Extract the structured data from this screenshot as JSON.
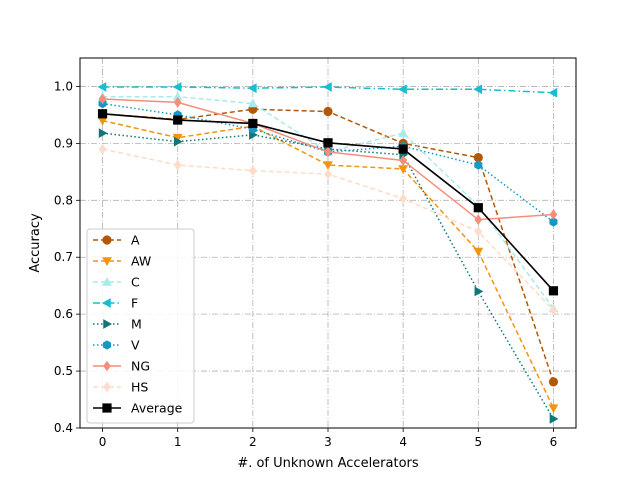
{
  "chart_data": {
    "type": "line",
    "title": "",
    "xlabel": "#. of Unknown Accelerators",
    "ylabel": "Accuracy",
    "x": [
      0,
      1,
      2,
      3,
      4,
      5,
      6
    ],
    "xlim": [
      -0.3,
      6.3
    ],
    "ylim": [
      0.4,
      1.05
    ],
    "xticks": [
      "0",
      "1",
      "2",
      "3",
      "4",
      "5",
      "6"
    ],
    "yticks": [
      "0.4",
      "0.5",
      "0.6",
      "0.7",
      "0.8",
      "0.9",
      "1.0"
    ],
    "grid": true,
    "legend_position": "lower-left",
    "series": [
      {
        "name": "A",
        "values": [
          0.952,
          0.942,
          0.96,
          0.956,
          0.9,
          0.875,
          0.481
        ],
        "color": "#b35806",
        "dash": "dashed",
        "marker": "circle"
      },
      {
        "name": "AW",
        "values": [
          0.94,
          0.91,
          0.93,
          0.862,
          0.855,
          0.71,
          0.435
        ],
        "color": "#f1940f",
        "dash": "dashed",
        "marker": "triangle-down"
      },
      {
        "name": "C",
        "values": [
          0.982,
          0.982,
          0.97,
          0.885,
          0.918,
          0.79,
          0.61
        ],
        "color": "#a9eaea",
        "dash": "dashed",
        "marker": "triangle-up"
      },
      {
        "name": "F",
        "values": [
          0.999,
          0.999,
          0.997,
          0.999,
          0.995,
          0.995,
          0.989
        ],
        "color": "#17becf",
        "dash": "dashdot",
        "marker": "triangle-left"
      },
      {
        "name": "M",
        "values": [
          0.918,
          0.903,
          0.915,
          0.89,
          0.88,
          0.64,
          0.416
        ],
        "color": "#117777",
        "dash": "dotted",
        "marker": "triangle-right"
      },
      {
        "name": "V",
        "values": [
          0.97,
          0.95,
          0.925,
          0.885,
          0.895,
          0.862,
          0.762
        ],
        "color": "#1798c2",
        "dash": "dotted",
        "marker": "hexagon"
      },
      {
        "name": "NG",
        "values": [
          0.978,
          0.972,
          0.935,
          0.885,
          0.87,
          0.766,
          0.775
        ],
        "color": "#f88c7a",
        "dash": "solid",
        "marker": "diamond"
      },
      {
        "name": "HS",
        "values": [
          0.89,
          0.862,
          0.852,
          0.846,
          0.803,
          0.745,
          0.607
        ],
        "color": "#fddcca",
        "dash": "dashed",
        "marker": "diamond"
      },
      {
        "name": "Average",
        "values": [
          0.952,
          0.941,
          0.935,
          0.901,
          0.89,
          0.787,
          0.641
        ],
        "color": "#000000",
        "dash": "solid",
        "marker": "square"
      }
    ]
  }
}
